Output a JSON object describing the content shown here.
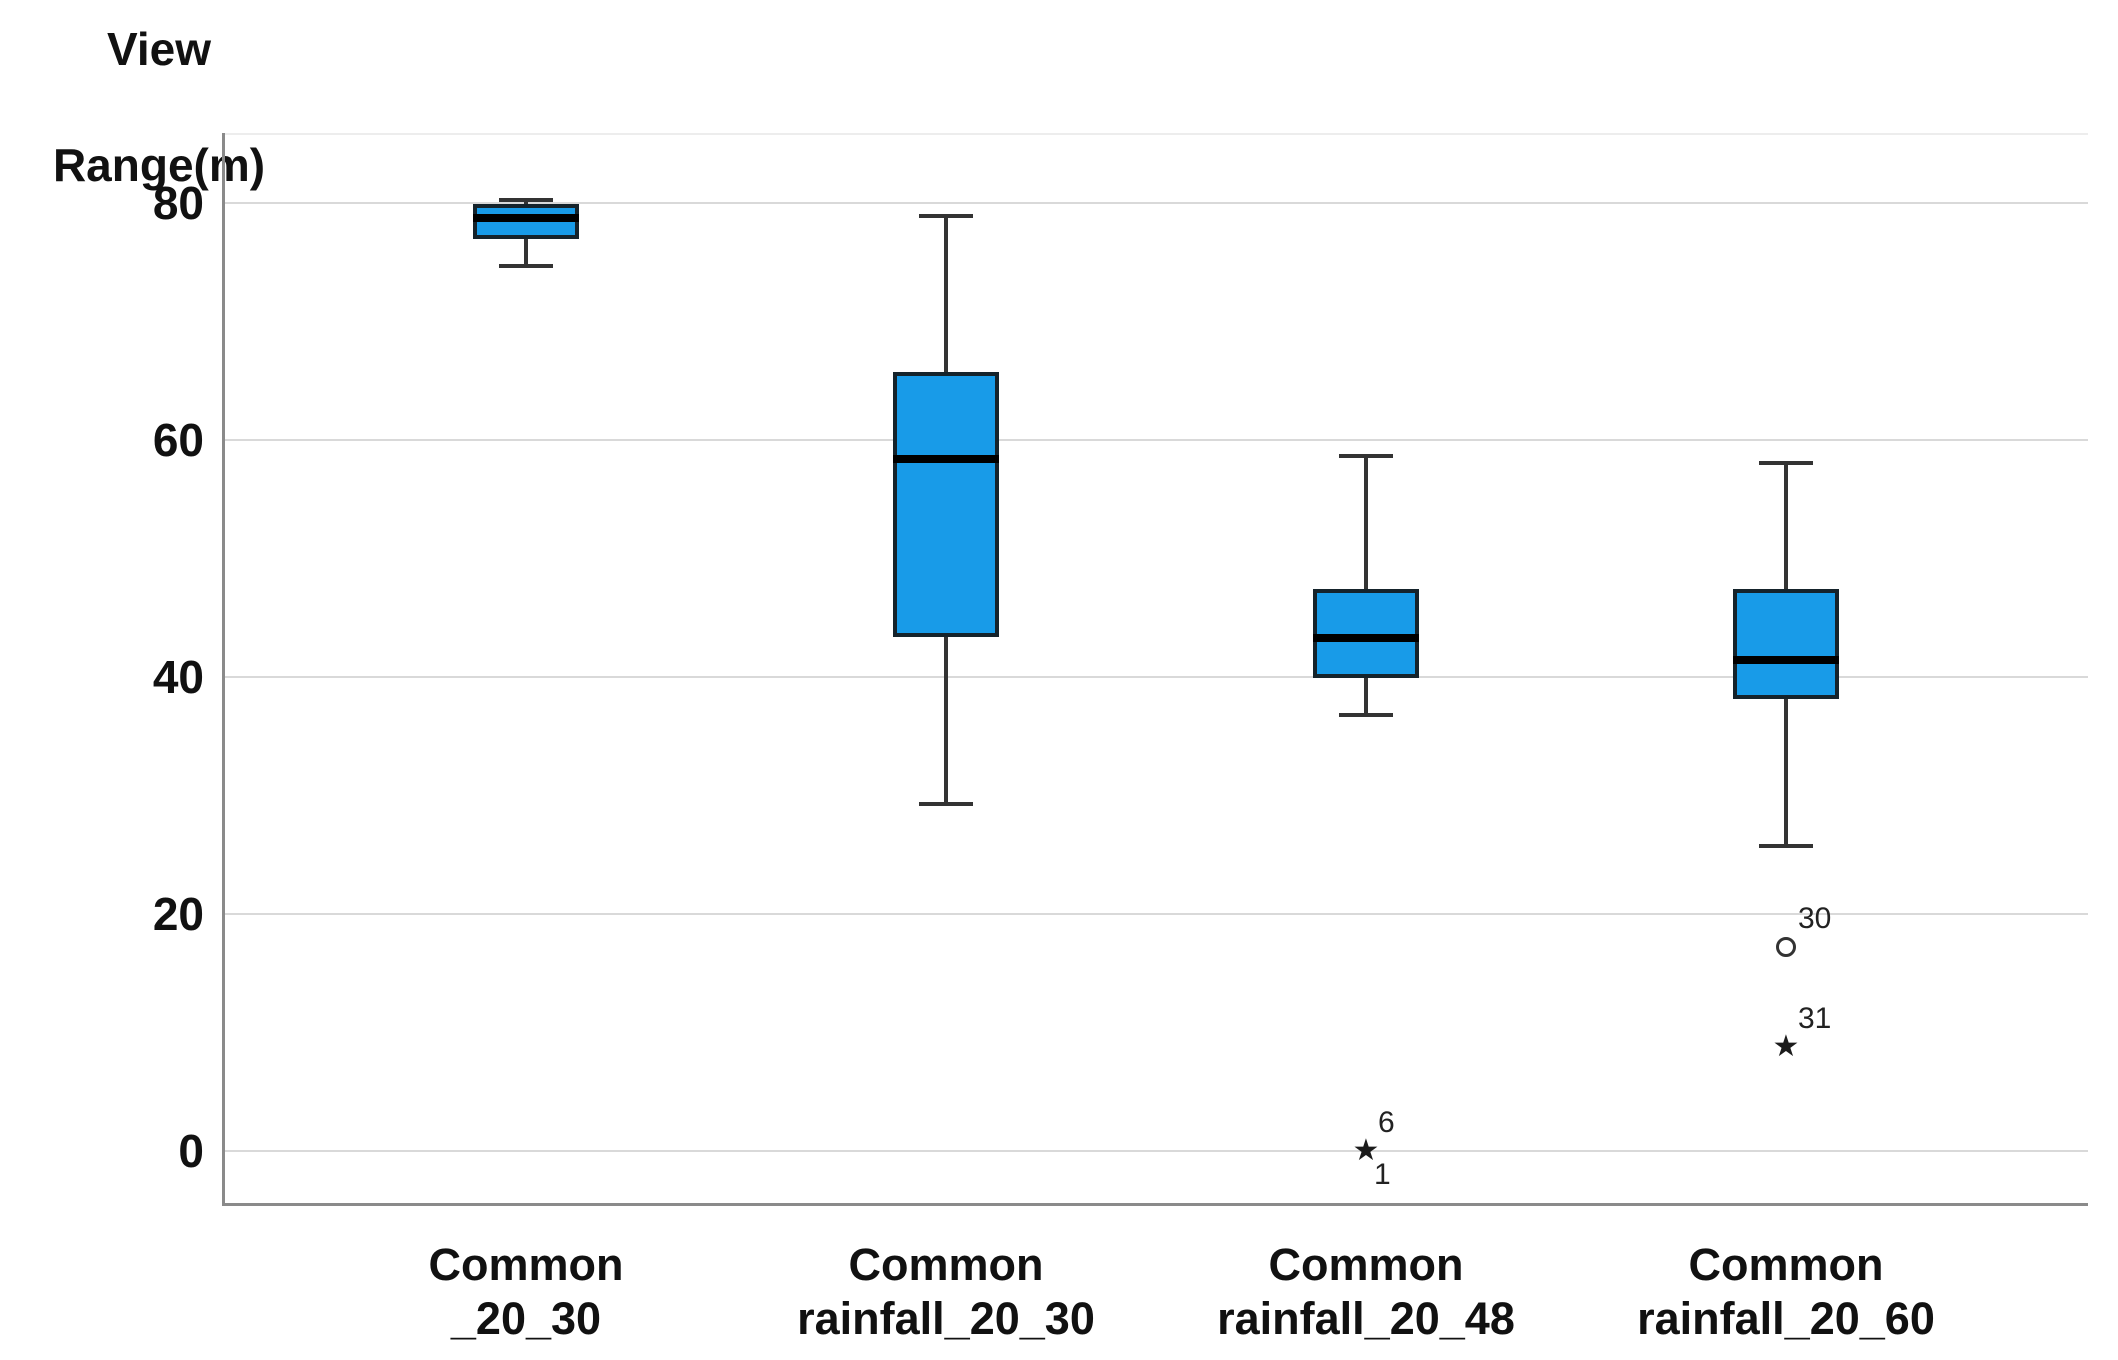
{
  "chart_data": {
    "type": "boxplot",
    "title": "",
    "y_axis": {
      "title_lines": [
        "View",
        "Range(m)"
      ],
      "ticks": [
        0,
        20,
        40,
        60,
        80
      ],
      "range": [
        -4.5,
        86
      ],
      "grid": true
    },
    "x_axis": {
      "categories": [
        [
          "Common",
          "_20_30"
        ],
        [
          "Common",
          "rainfall_20_30"
        ],
        [
          "Common",
          "rainfall_20_48"
        ],
        [
          "Common",
          "rainfall_20_60"
        ]
      ]
    },
    "series": [
      {
        "name": "Common _20_30",
        "min": 74.7,
        "q1": 76.9,
        "median": 78.7,
        "q3": 79.9,
        "max": 80.2,
        "outliers": []
      },
      {
        "name": "Common rainfall_20_30",
        "min": 29.3,
        "q1": 43.4,
        "median": 58.4,
        "q3": 65.7,
        "max": 78.9,
        "outliers": []
      },
      {
        "name": "Common rainfall_20_48",
        "min": 36.8,
        "q1": 39.9,
        "median": 43.3,
        "q3": 47.4,
        "max": 58.6,
        "outliers": [
          {
            "marker": "star",
            "value": 0,
            "labels_above": [
              "6"
            ],
            "labels_below": [
              "1"
            ]
          }
        ]
      },
      {
        "name": "Common rainfall_20_60",
        "min": 25.7,
        "q1": 38.1,
        "median": 41.4,
        "q3": 47.4,
        "max": 58.0,
        "outliers": [
          {
            "marker": "circle",
            "value": 17.2,
            "labels_above": [
              "30"
            ],
            "labels_below": []
          },
          {
            "marker": "star",
            "value": 8.8,
            "labels_above": [
              "31"
            ],
            "labels_below": []
          }
        ]
      }
    ],
    "colors": {
      "box_fill": "#189BE8",
      "box_border": "#15232B",
      "median": "#000000",
      "whisker": "#333333",
      "gridline": "#D9D9D9",
      "axis": "#8A8A8A",
      "text": "#111111"
    }
  }
}
